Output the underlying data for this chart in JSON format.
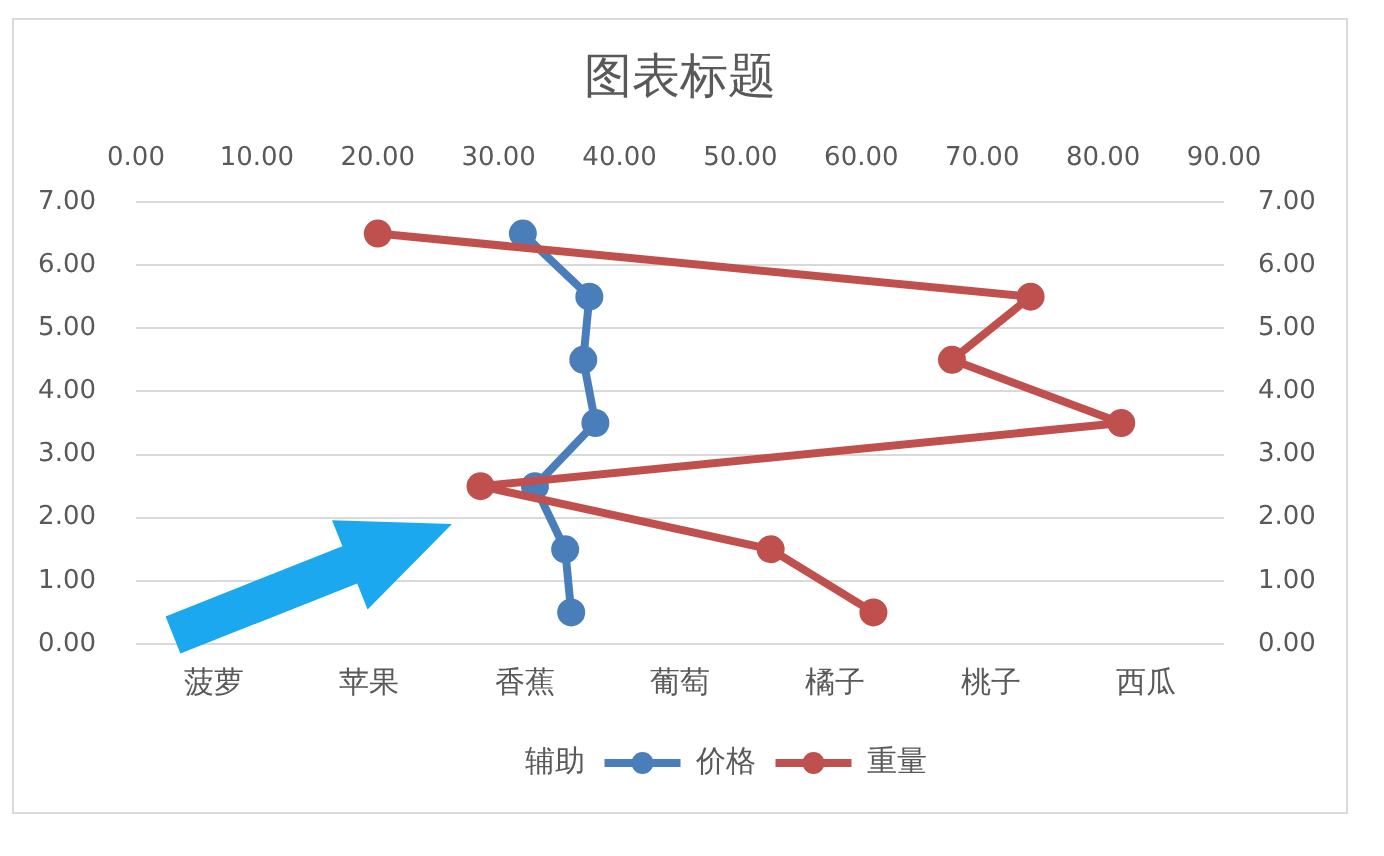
{
  "chart_data": {
    "type": "line",
    "title": "图表标题",
    "categories": [
      "菠萝",
      "苹果",
      "香蕉",
      "葡萄",
      "橘子",
      "桃子",
      "西瓜"
    ],
    "series": [
      {
        "name": "辅助",
        "type": "bar",
        "values": [
          null,
          null,
          null,
          null,
          null,
          null,
          null
        ]
      },
      {
        "name": "价格",
        "color": "#4a7ebb",
        "axis": "x2",
        "x": [
          36,
          35.5,
          33,
          38,
          37,
          37.5,
          32
        ],
        "values": [
          0.5,
          1.5,
          2.5,
          3.5,
          4.5,
          5.5,
          6.5
        ]
      },
      {
        "name": "重量",
        "color": "#c0504d",
        "axis": "x2",
        "x": [
          61,
          52.5,
          28.5,
          81.5,
          67.5,
          74,
          20
        ],
        "values": [
          0.5,
          1.5,
          2.5,
          3.5,
          4.5,
          5.5,
          6.5
        ]
      }
    ],
    "x2lim": [
      0,
      90
    ],
    "x2ticks": [
      {
        "value": 0,
        "label": "0.00"
      },
      {
        "value": 10,
        "label": "10.00"
      },
      {
        "value": 20,
        "label": "20.00"
      },
      {
        "value": 30,
        "label": "30.00"
      },
      {
        "value": 40,
        "label": "40.00"
      },
      {
        "value": 50,
        "label": "50.00"
      },
      {
        "value": 60,
        "label": "60.00"
      },
      {
        "value": 70,
        "label": "70.00"
      },
      {
        "value": 80,
        "label": "80.00"
      },
      {
        "value": 90,
        "label": "90.00"
      }
    ],
    "ylim": [
      0,
      7
    ],
    "yticks": [
      {
        "value": 0,
        "label": "0.00"
      },
      {
        "value": 1,
        "label": "1.00"
      },
      {
        "value": 2,
        "label": "2.00"
      },
      {
        "value": 3,
        "label": "3.00"
      },
      {
        "value": 4,
        "label": "4.00"
      },
      {
        "value": 5,
        "label": "5.00"
      },
      {
        "value": 6,
        "label": "6.00"
      },
      {
        "value": 7,
        "label": "7.00"
      }
    ],
    "y2lim": [
      0,
      7
    ],
    "y2ticks": [
      {
        "value": 0,
        "label": "0.00"
      },
      {
        "value": 1,
        "label": "1.00"
      },
      {
        "value": 2,
        "label": "2.00"
      },
      {
        "value": 3,
        "label": "3.00"
      },
      {
        "value": 4,
        "label": "4.00"
      },
      {
        "value": 5,
        "label": "5.00"
      },
      {
        "value": 6,
        "label": "6.00"
      },
      {
        "value": 7,
        "label": "7.00"
      }
    ],
    "grid": "y",
    "legend": "bottom",
    "marker": "circle",
    "line_style": "solid"
  }
}
